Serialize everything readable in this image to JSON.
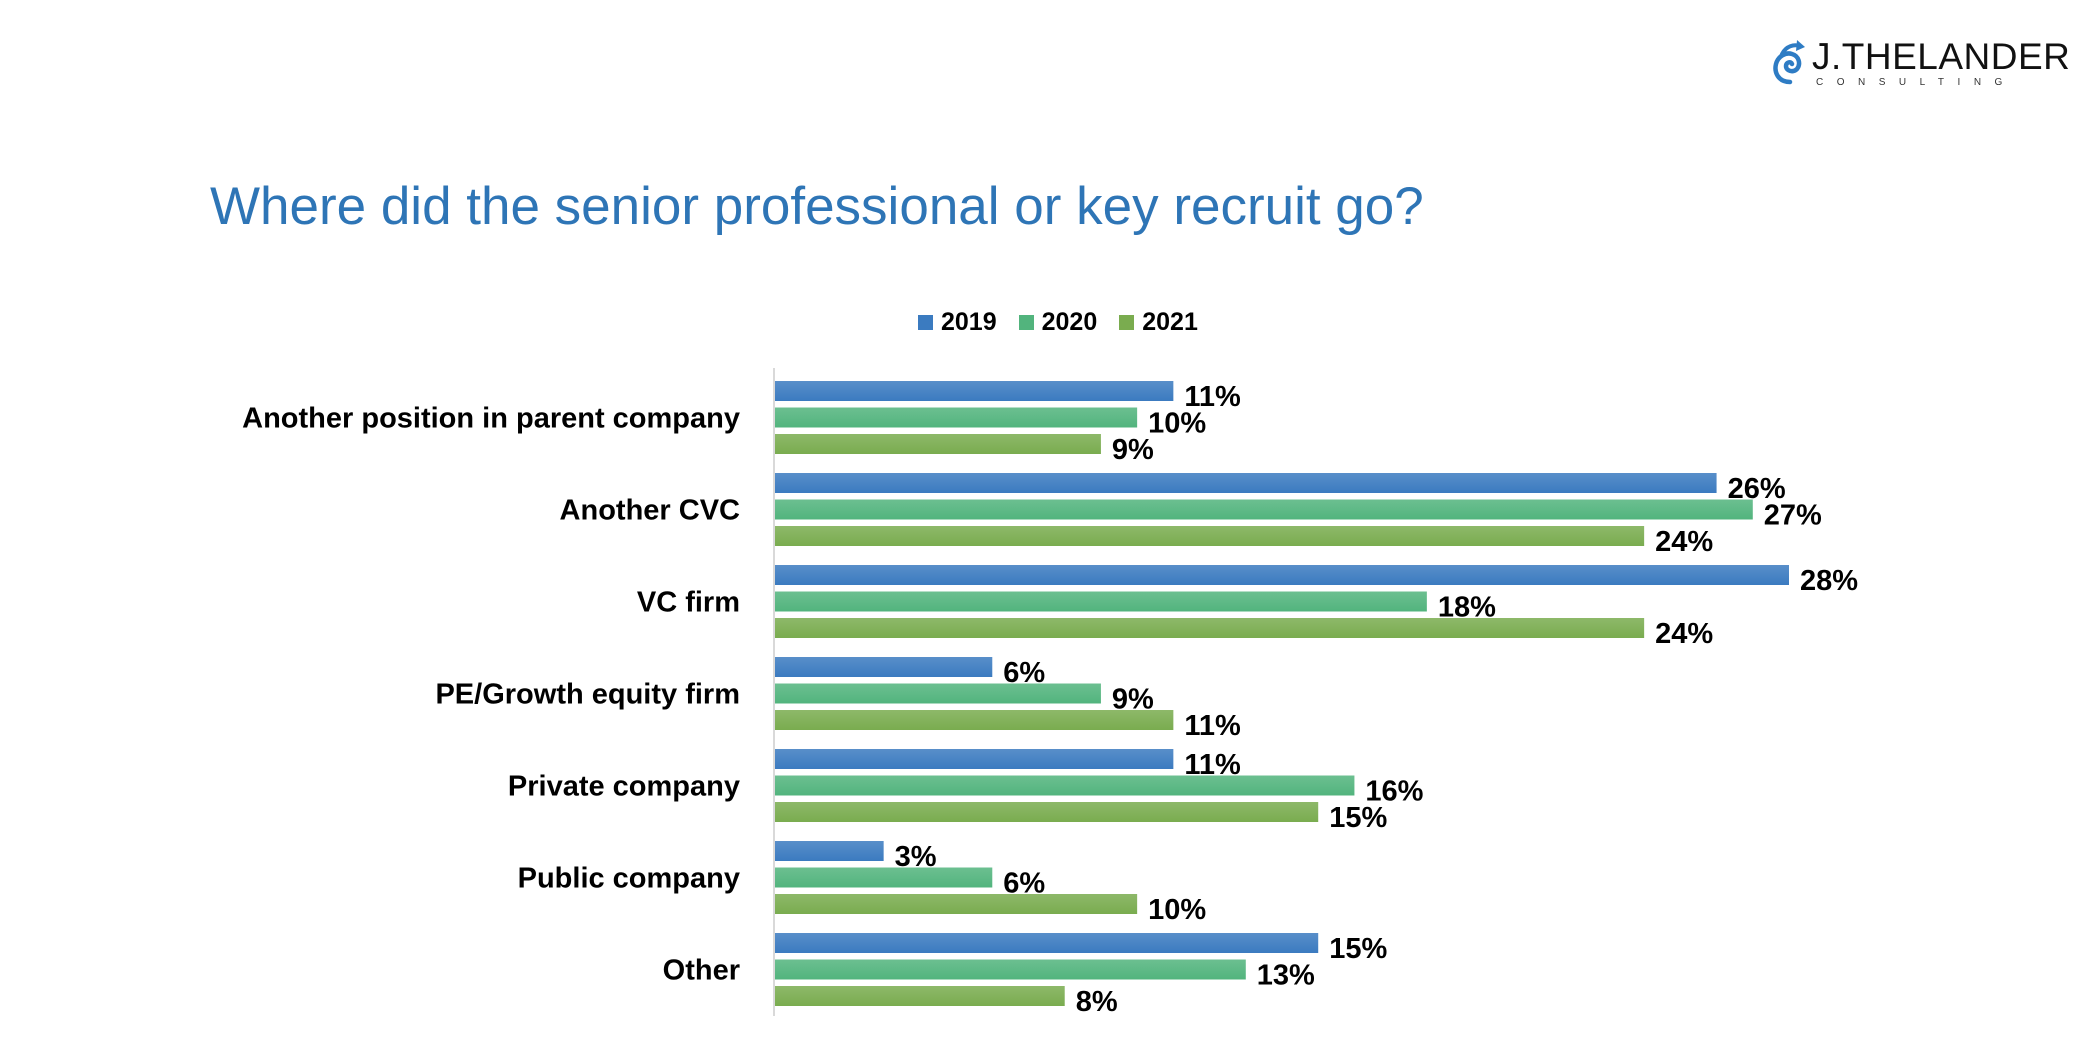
{
  "logo": {
    "brand": "J.THELANDER",
    "sub": "CONSULTING"
  },
  "title": "Where did the senior professional or key recruit go?",
  "chart_data": {
    "type": "bar",
    "orientation": "horizontal",
    "title": "Where did the senior professional or key recruit go?",
    "categories": [
      "Another position in parent company",
      "Another CVC",
      "VC firm",
      "PE/Growth equity firm",
      "Private company",
      "Public company",
      "Other"
    ],
    "series": [
      {
        "name": "2019",
        "color": "#3b7bc0",
        "values": [
          11,
          26,
          28,
          6,
          11,
          3,
          15
        ]
      },
      {
        "name": "2020",
        "color": "#52b47d",
        "values": [
          10,
          27,
          18,
          9,
          16,
          6,
          13
        ]
      },
      {
        "name": "2021",
        "color": "#7aac4f",
        "values": [
          9,
          24,
          24,
          11,
          15,
          10,
          8
        ]
      }
    ],
    "value_suffix": "%",
    "xlim": [
      0,
      28
    ],
    "legend": "top",
    "grid": false
  }
}
